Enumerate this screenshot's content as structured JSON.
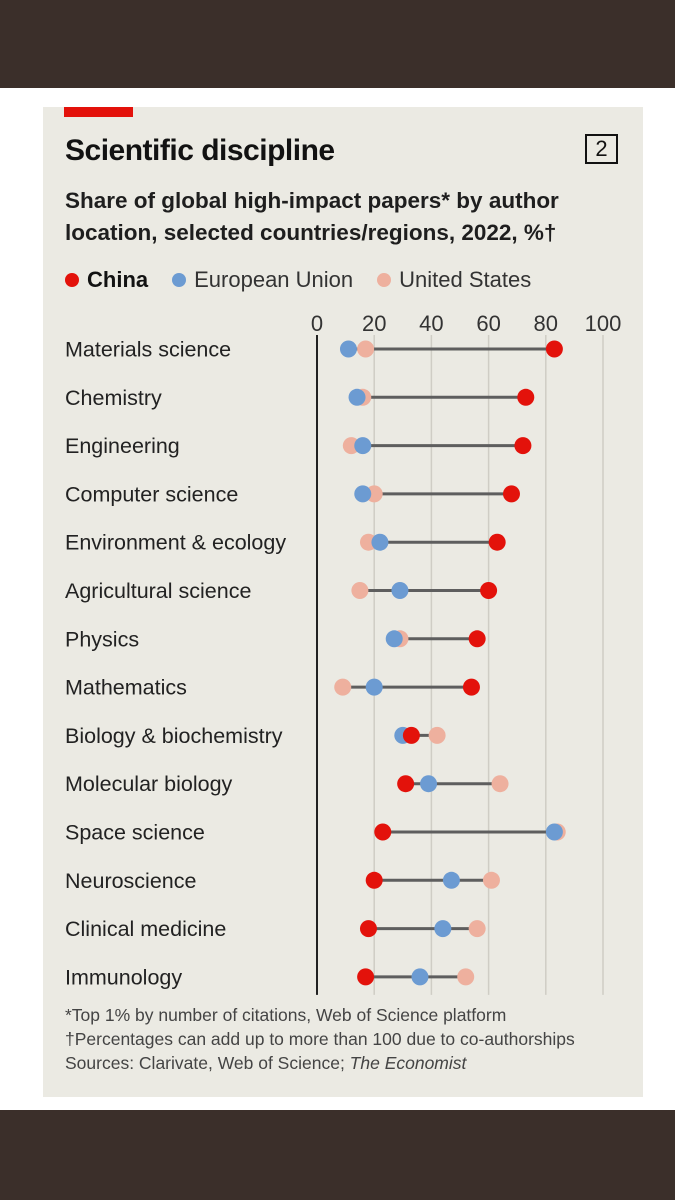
{
  "chart_data": {
    "type": "dumbbell",
    "title": "Scientific discipline",
    "chart_number": "2",
    "subtitle": "Share of global high-impact papers* by author location, selected countries/regions, 2022, %†",
    "xlim": [
      0,
      100
    ],
    "x_ticks": [
      "0",
      "20",
      "40",
      "60",
      "80",
      "100"
    ],
    "tick_values": [
      0,
      20,
      40,
      60,
      80,
      100
    ],
    "colors": {
      "China": "#e3120b",
      "European Union": "#6c9bd2",
      "United States": "#eeb09e",
      "line": "#5e5e5e",
      "grid": "#cfcdc5"
    },
    "series": [
      {
        "name": "China",
        "key": "china"
      },
      {
        "name": "European Union",
        "key": "eu"
      },
      {
        "name": "United States",
        "key": "us"
      }
    ],
    "categories": [
      {
        "label": "Materials science",
        "china": 83,
        "eu": 11,
        "us": 17
      },
      {
        "label": "Chemistry",
        "china": 73,
        "eu": 14,
        "us": 16
      },
      {
        "label": "Engineering",
        "china": 72,
        "eu": 16,
        "us": 12
      },
      {
        "label": "Computer science",
        "china": 68,
        "eu": 16,
        "us": 20
      },
      {
        "label": "Environment & ecology",
        "china": 63,
        "eu": 22,
        "us": 18
      },
      {
        "label": "Agricultural science",
        "china": 60,
        "eu": 29,
        "us": 15
      },
      {
        "label": "Physics",
        "china": 56,
        "eu": 27,
        "us": 29
      },
      {
        "label": "Mathematics",
        "china": 54,
        "eu": 20,
        "us": 9
      },
      {
        "label": "Biology & biochemistry",
        "china": 33,
        "eu": 30,
        "us": 42
      },
      {
        "label": "Molecular biology",
        "china": 31,
        "eu": 39,
        "us": 64
      },
      {
        "label": "Space science",
        "china": 23,
        "eu": 83,
        "us": 84
      },
      {
        "label": "Neuroscience",
        "china": 20,
        "eu": 47,
        "us": 61
      },
      {
        "label": "Clinical medicine",
        "china": 18,
        "eu": 44,
        "us": 56
      },
      {
        "label": "Immunology",
        "china": 17,
        "eu": 36,
        "us": 52
      }
    ]
  },
  "notes": {
    "line1": "*Top 1% by number of citations, Web of Science platform",
    "line2": "†Percentages can add up to more than 100 due to co-authorships",
    "line3_a": "Sources: Clarivate, Web of Science; ",
    "line3_b": "The Economist"
  }
}
